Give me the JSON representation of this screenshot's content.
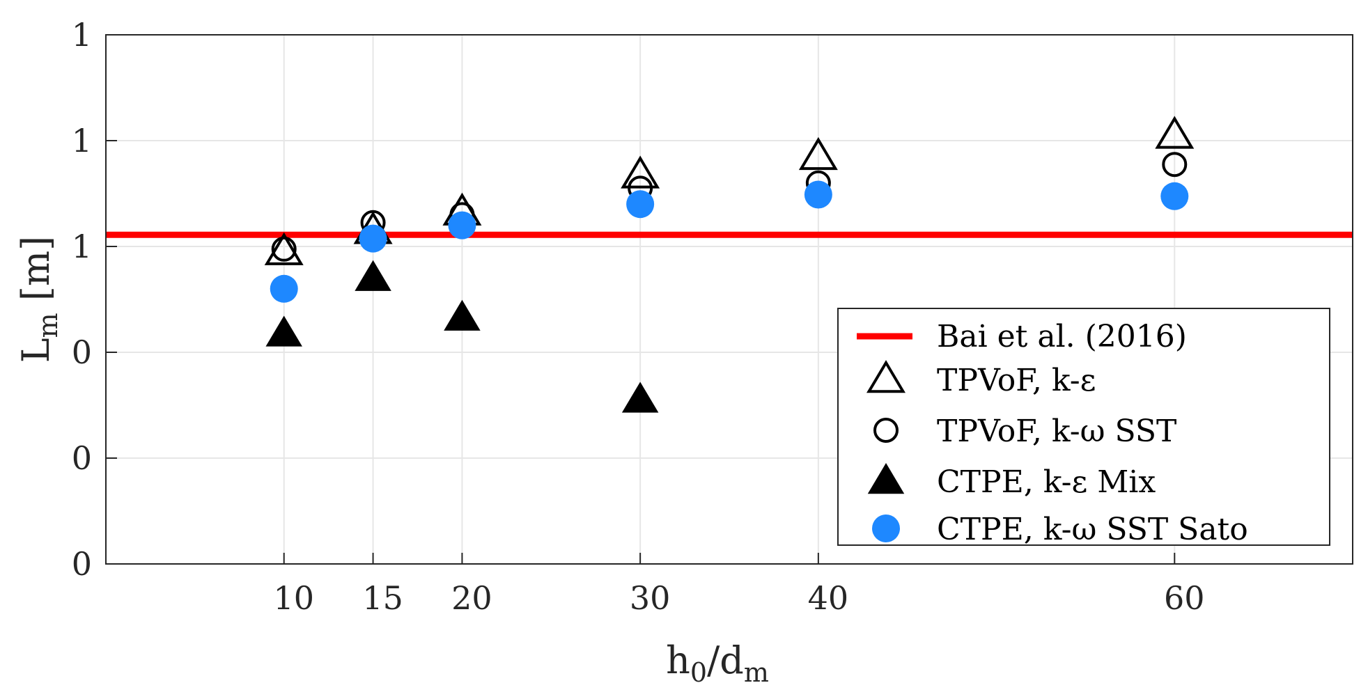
{
  "chart_data": {
    "type": "scatter",
    "title": "",
    "xlabel": {
      "main": "h",
      "sub1": "0",
      "mid": "/d",
      "sub2": "m"
    },
    "ylabel": {
      "main": "L",
      "sub": "m",
      "unit": " [m]"
    },
    "xlim": [
      0,
      70
    ],
    "ylim": [
      0,
      1.0
    ],
    "xticks": [
      10,
      15,
      20,
      30,
      40,
      60
    ],
    "xtick_labels": [
      "10",
      "15",
      "20",
      "30",
      "40",
      "60"
    ],
    "yticks": [
      0,
      0.2,
      0.4,
      0.6,
      0.8,
      1.0
    ],
    "ytick_labels": [
      "0",
      "0",
      "0",
      "1",
      "1",
      "1"
    ],
    "grid": true,
    "legend_position": "bottom-right",
    "reference_line": {
      "name": "Bai et al. (2016)",
      "y": 0.622,
      "color": "#ff0000"
    },
    "series": [
      {
        "name": "TPVoF, k-ε",
        "marker": "triangle-open",
        "color": "#000000",
        "x": [
          10,
          15,
          20,
          30,
          40,
          60
        ],
        "y": [
          0.59,
          0.63,
          0.665,
          0.735,
          0.77,
          0.81
        ]
      },
      {
        "name": "TPVoF, k-ω SST",
        "marker": "circle-open",
        "color": "#000000",
        "x": [
          10,
          15,
          20,
          30,
          40,
          60
        ],
        "y": [
          0.595,
          0.645,
          0.66,
          0.71,
          0.72,
          0.755
        ]
      },
      {
        "name": "CTPE,  k-ε Mix",
        "marker": "triangle-filled",
        "color": "#000000",
        "x": [
          10,
          15,
          20,
          30
        ],
        "y": [
          0.435,
          0.54,
          0.465,
          0.31
        ]
      },
      {
        "name": "CTPE,  k-ω SST Sato",
        "marker": "circle-filled",
        "color": "#1e88ff",
        "x": [
          10,
          15,
          20,
          30,
          40,
          60
        ],
        "y": [
          0.52,
          0.615,
          0.64,
          0.68,
          0.698,
          0.695
        ]
      }
    ]
  }
}
